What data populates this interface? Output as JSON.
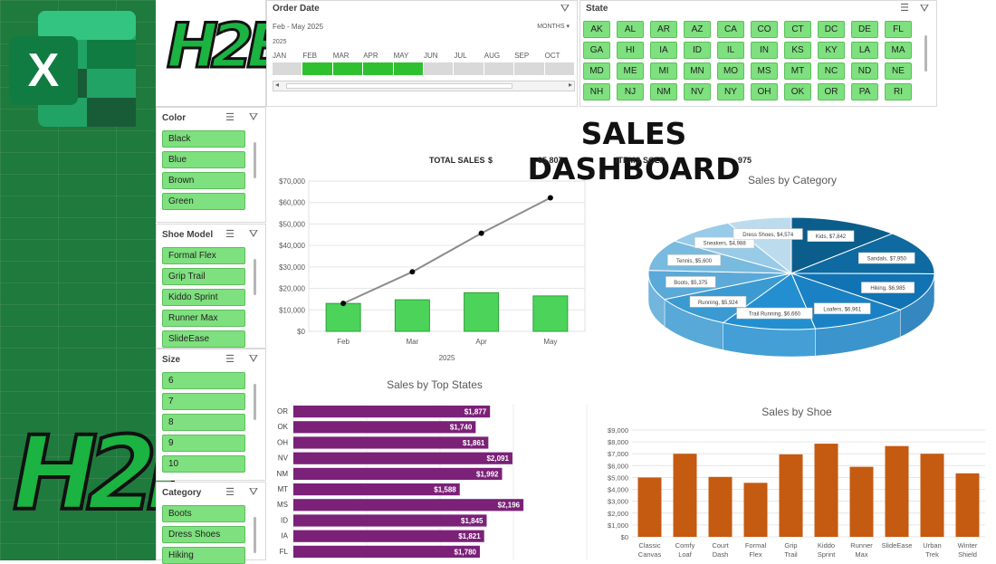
{
  "logo_text": "H2E",
  "excel_icon_letter": "X",
  "order_date": {
    "title": "Order Date",
    "range": "Feb - May 2025",
    "level": "MONTHS",
    "year": "2025",
    "months": [
      "JAN",
      "FEB",
      "MAR",
      "APR",
      "MAY",
      "JUN",
      "JUL",
      "AUG",
      "SEP",
      "OCT"
    ],
    "selected": [
      "FEB",
      "MAR",
      "APR",
      "MAY"
    ]
  },
  "state_slicer": {
    "title": "State",
    "items": [
      "AK",
      "AL",
      "AR",
      "AZ",
      "CA",
      "CO",
      "CT",
      "DC",
      "DE",
      "FL",
      "GA",
      "HI",
      "IA",
      "ID",
      "IL",
      "IN",
      "KS",
      "KY",
      "LA",
      "MA",
      "MD",
      "ME",
      "MI",
      "MN",
      "MO",
      "MS",
      "MT",
      "NC",
      "ND",
      "NE",
      "NH",
      "NJ",
      "NM",
      "NV",
      "NY",
      "OH",
      "OK",
      "OR",
      "PA",
      "RI"
    ]
  },
  "color_slicer": {
    "title": "Color",
    "items": [
      "Black",
      "Blue",
      "Brown",
      "Green"
    ]
  },
  "model_slicer": {
    "title": "Shoe Model",
    "items": [
      "Formal Flex",
      "Grip Trail",
      "Kiddo Sprint",
      "Runner Max",
      "SlideEase"
    ]
  },
  "size_slicer": {
    "title": "Size",
    "items": [
      "6",
      "7",
      "8",
      "9",
      "10"
    ]
  },
  "category_slicer": {
    "title": "Category",
    "items": [
      "Boots",
      "Dress Shoes",
      "Hiking"
    ]
  },
  "dashboard": {
    "title": "SALES DASHBOARD",
    "total_sales_label": "TOTAL SALES",
    "currency": "$",
    "total_sales_value": "95,807",
    "items_sold_label": "ITEMS SOLD",
    "items_sold_value": "975"
  },
  "colors": {
    "green": "#4cd45a",
    "purple": "#7b2178",
    "orange": "#c55a11",
    "blue": "#1a76b8",
    "slicer_green": "#7ee07e"
  },
  "chart_data": [
    {
      "id": "monthly",
      "type": "bar",
      "title": "",
      "categories": [
        "Feb",
        "Mar",
        "Apr",
        "May"
      ],
      "xlabel": "2025",
      "series": [
        {
          "values": [
            13000,
            14700,
            18000,
            16500
          ]
        },
        {
          "type": "line",
          "values": [
            13000,
            27700,
            45700,
            62200
          ]
        }
      ],
      "ylim": [
        0,
        70000
      ],
      "yticks": [
        "$0",
        "$10,000",
        "$20,000",
        "$30,000",
        "$40,000",
        "$50,000",
        "$60,000",
        "$70,000"
      ],
      "grid": true
    },
    {
      "id": "category",
      "type": "pie",
      "title": "Sales by Category",
      "slices": [
        {
          "label": "Kids, $7,842",
          "value": 7842
        },
        {
          "label": "Sandals, $7,950",
          "value": 7950
        },
        {
          "label": "Hiking, $6,985",
          "value": 6985
        },
        {
          "label": "Loafers, $6,961",
          "value": 6961
        },
        {
          "label": "Trail Running, $6,660",
          "value": 6660
        },
        {
          "label": "Running, $5,924",
          "value": 5924
        },
        {
          "label": "Boots, $5,375",
          "value": 5375
        },
        {
          "label": "Tennis, $5,600",
          "value": 5600
        },
        {
          "label": "Sneakers, $4,988",
          "value": 4988
        },
        {
          "label": "Dress Shoes, $4,574",
          "value": 4574
        }
      ],
      "colors": [
        "#0b5d8c",
        "#0e6aa0",
        "#1273b4",
        "#1a82c4",
        "#238fd0",
        "#3b9ad2",
        "#5aa9d8",
        "#79badf",
        "#98cbe7",
        "#bcdcee"
      ]
    },
    {
      "id": "states",
      "type": "bar",
      "orientation": "horizontal",
      "title": "Sales by Top States",
      "categories": [
        "OR",
        "OK",
        "OH",
        "NV",
        "NM",
        "MT",
        "MS",
        "ID",
        "IA",
        "FL"
      ],
      "values": [
        1877,
        1740,
        1861,
        2091,
        1992,
        1588,
        2196,
        1845,
        1821,
        1780
      ],
      "labels": [
        "$1,877",
        "$1,740",
        "$1,861",
        "$2,091",
        "$1,992",
        "$1,588",
        "$2,196",
        "$1,845",
        "$1,821",
        "$1,780"
      ],
      "xlim": [
        0,
        2800
      ]
    },
    {
      "id": "shoe",
      "type": "bar",
      "title": "Sales by Shoe",
      "categories": [
        "Classic Canvas",
        "Comfy Loaf",
        "Court Dash",
        "Formal Flex",
        "Grip Trail",
        "Kiddo Sprint",
        "Runner Max",
        "SlideEase",
        "Urban Trek",
        "Winter Shield"
      ],
      "values": [
        5000,
        7000,
        5050,
        4550,
        6950,
        7850,
        5900,
        7650,
        7000,
        5350
      ],
      "ylim": [
        0,
        9000
      ],
      "yticks": [
        "$0",
        "$1,000",
        "$2,000",
        "$3,000",
        "$4,000",
        "$5,000",
        "$6,000",
        "$7,000",
        "$8,000",
        "$9,000"
      ],
      "grid": true
    }
  ]
}
